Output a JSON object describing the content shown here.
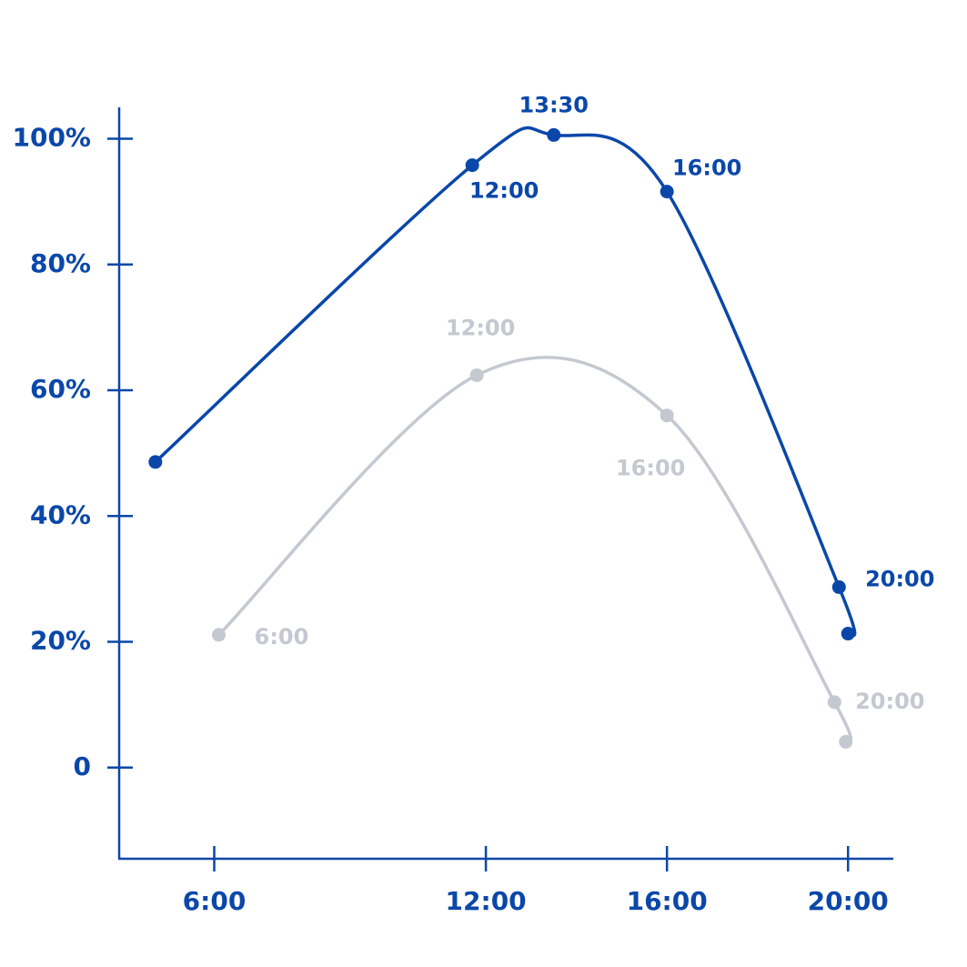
{
  "chart_data": {
    "type": "line",
    "series": [
      {
        "color": "#0a47a9",
        "x": [
          4.7,
          11.7,
          13.5,
          16,
          19.8,
          20
        ],
        "values": [
          48.6,
          95.8,
          100.6,
          91.6,
          28.7,
          21.3
        ],
        "point_labels": [
          null,
          "12:00",
          "13:30",
          "16:00",
          "20:00",
          null
        ]
      },
      {
        "color": "#c4c8d0",
        "x": [
          6.1,
          11.8,
          16,
          19.7,
          19.95
        ],
        "values": [
          21.1,
          62.4,
          56,
          10.4,
          4.1
        ],
        "point_labels": [
          "6:00",
          "12:00",
          "16:00",
          "20:00",
          null
        ]
      }
    ],
    "xlim": [
      3.9,
      21
    ],
    "xticks": [
      {
        "value": 6,
        "label": "6:00"
      },
      {
        "value": 12,
        "label": "12:00"
      },
      {
        "value": 16,
        "label": "16:00"
      },
      {
        "value": 20,
        "label": "20:00"
      }
    ],
    "ylim": [
      -14.5,
      105
    ],
    "yticks": [
      0,
      {
        "value": 20,
        "label": "20%"
      },
      {
        "value": 40,
        "label": "40%"
      },
      {
        "value": 60,
        "label": "60%"
      },
      {
        "value": 80,
        "label": "80%"
      },
      {
        "value": 100,
        "label": "100%"
      }
    ]
  }
}
